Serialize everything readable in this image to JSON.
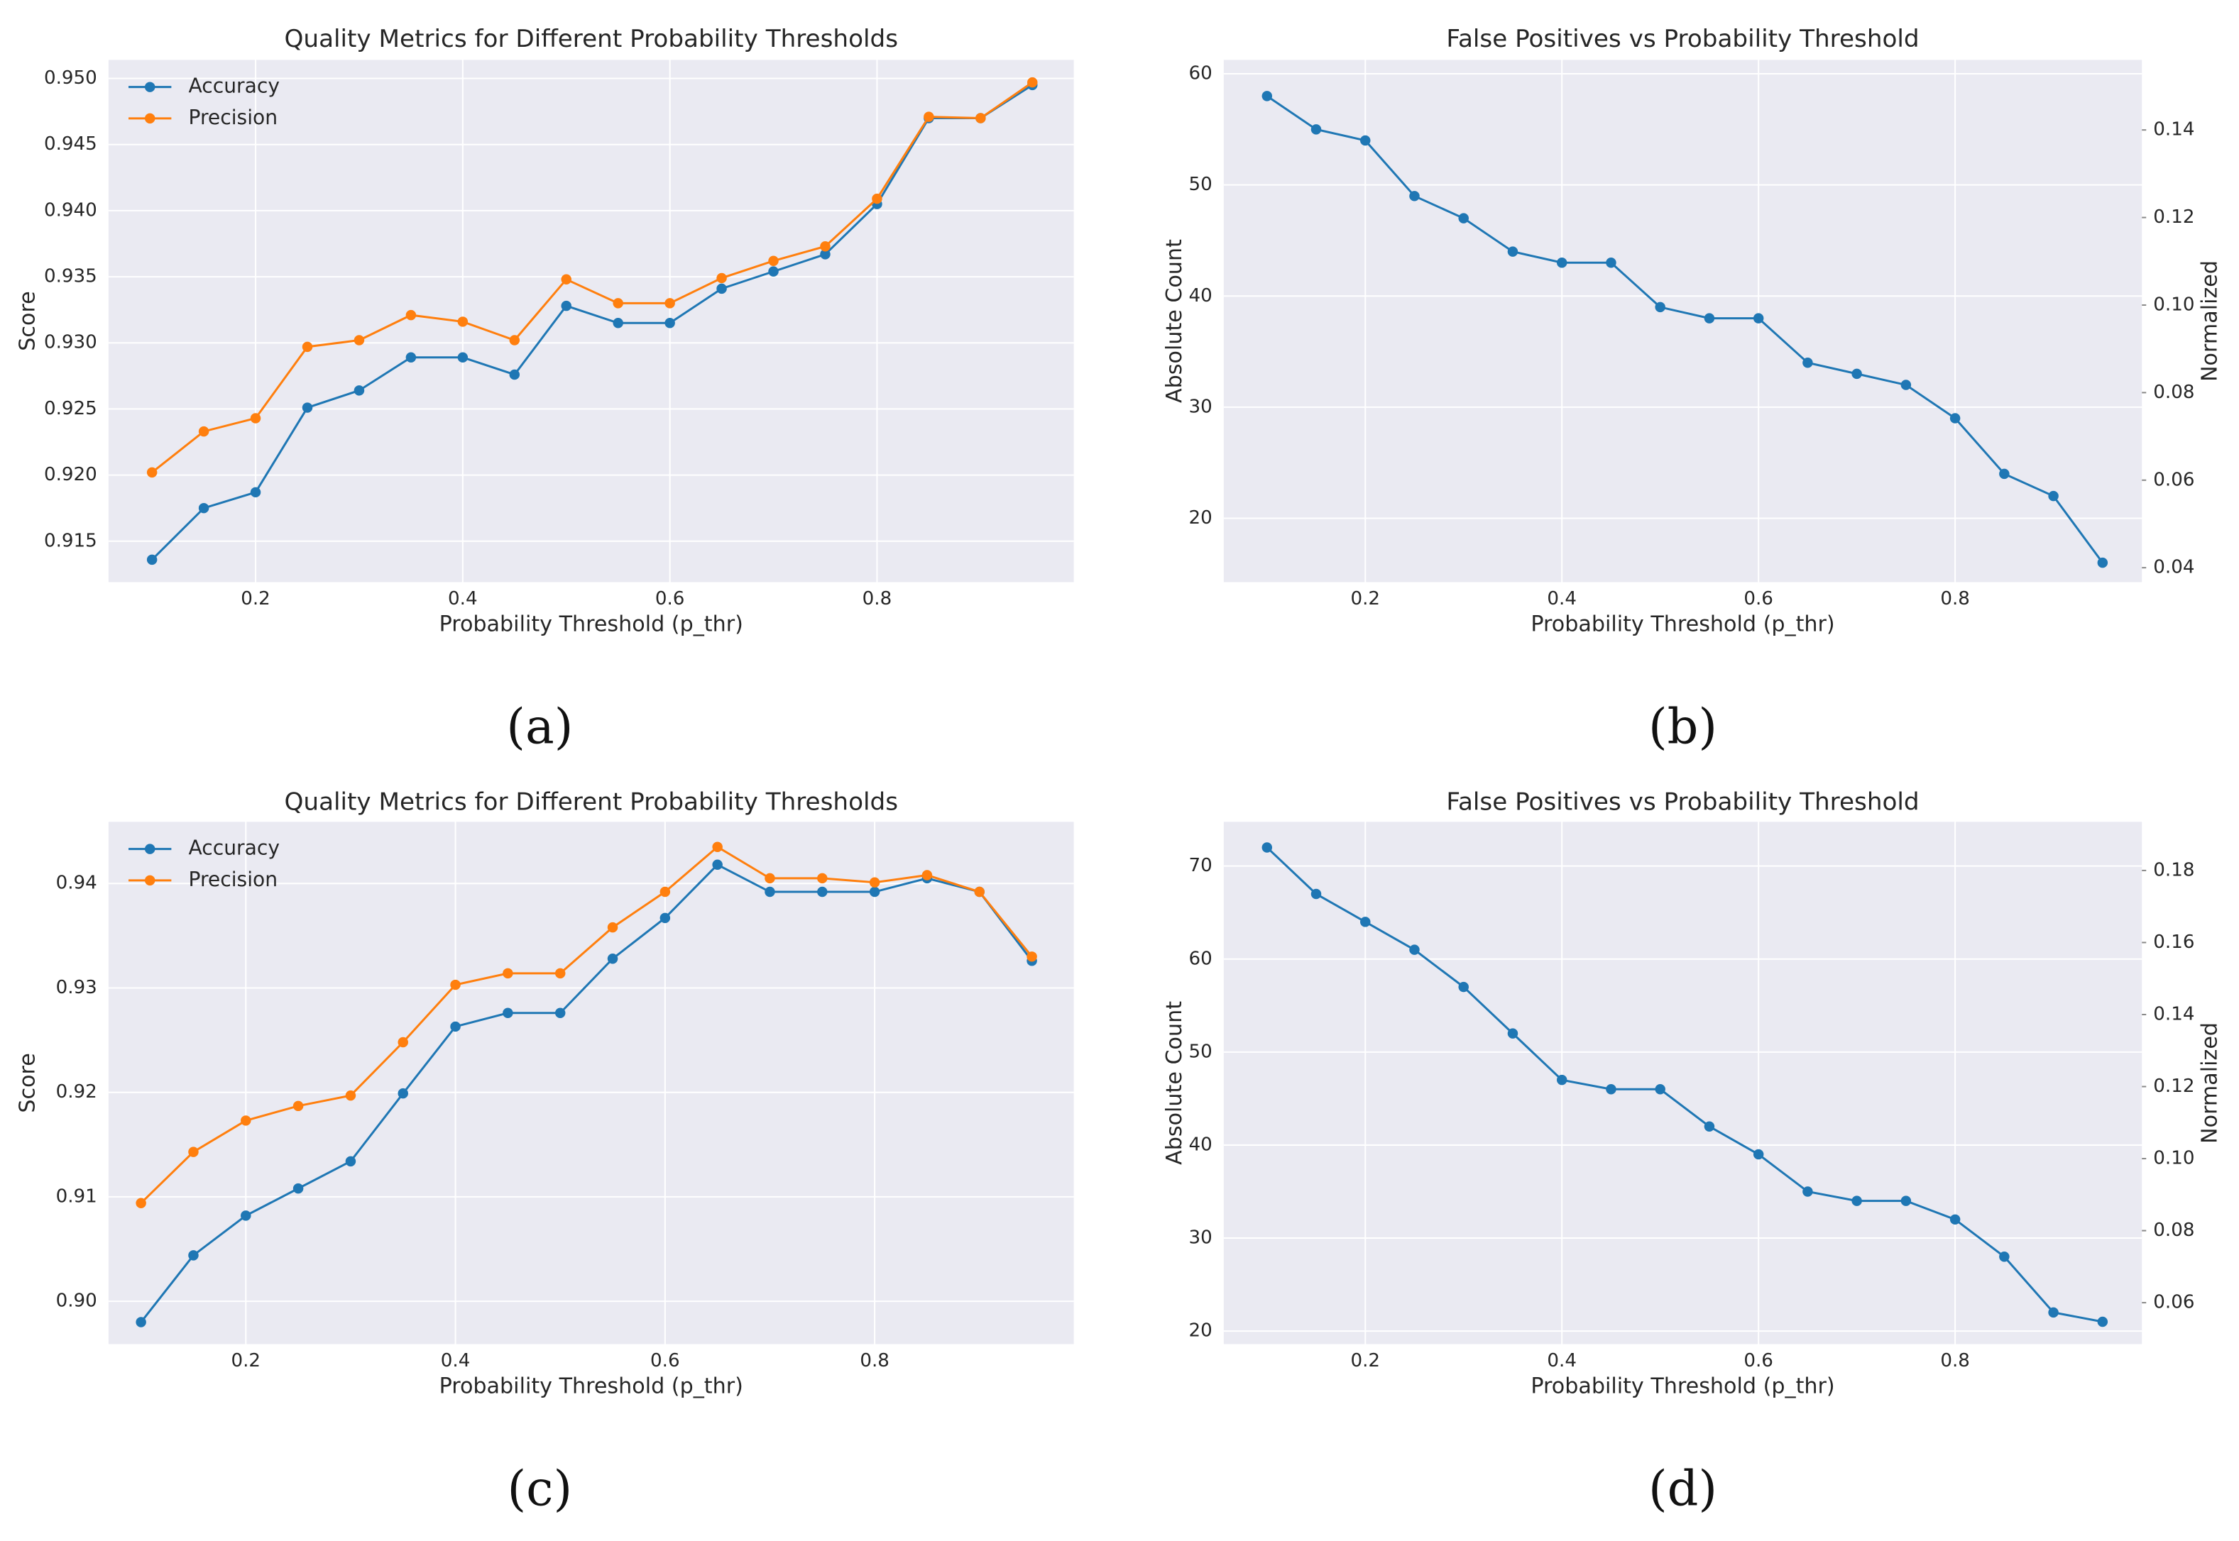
{
  "chart_data": [
    {
      "type": "line",
      "title": "Quality Metrics for Different Probability Thresholds",
      "panel_label": "(a)",
      "xlabel": "Probability Threshold (p_thr)",
      "ylabel": "Score",
      "x": [
        0.1,
        0.15,
        0.2,
        0.25,
        0.3,
        0.35,
        0.4,
        0.45,
        0.5,
        0.55,
        0.6,
        0.65,
        0.7,
        0.75,
        0.8,
        0.85,
        0.9,
        0.95
      ],
      "series": [
        {
          "name": "Accuracy",
          "color": "#1f77b4",
          "values": [
            0.9136,
            0.9175,
            0.9187,
            0.9251,
            0.9264,
            0.9289,
            0.9289,
            0.9276,
            0.9328,
            0.9315,
            0.9315,
            0.9341,
            0.9354,
            0.9367,
            0.9405,
            0.947,
            0.947,
            0.9495
          ]
        },
        {
          "name": "Precision",
          "color": "#ff7f0e",
          "values": [
            0.9202,
            0.9233,
            0.9243,
            0.9297,
            0.9302,
            0.9321,
            0.9316,
            0.9302,
            0.9348,
            0.933,
            0.933,
            0.9349,
            0.9362,
            0.9373,
            0.9409,
            0.9471,
            0.947,
            0.9497
          ]
        }
      ],
      "xlim": [
        0.058,
        0.99
      ],
      "xticks": [
        0.2,
        0.4,
        0.6,
        0.8
      ],
      "ylim": [
        0.9119,
        0.9514
      ],
      "yticks": [
        0.915,
        {
          "value": 0.92,
          "label": "0.920"
        },
        0.925,
        {
          "value": 0.93,
          "label": "0.930"
        },
        0.935,
        {
          "value": 0.94,
          "label": "0.940"
        },
        0.945,
        {
          "value": 0.95,
          "label": "0.950"
        }
      ],
      "grid": true,
      "legend": "upper left"
    },
    {
      "type": "line",
      "title": "False Positives vs Probability Threshold",
      "panel_label": "(b)",
      "xlabel": "Probability Threshold (p_thr)",
      "ylabel": "Absolute Count",
      "y2label": "Normalized",
      "x": [
        0.1,
        0.15,
        0.2,
        0.25,
        0.3,
        0.35,
        0.4,
        0.45,
        0.5,
        0.55,
        0.6,
        0.65,
        0.7,
        0.75,
        0.8,
        0.85,
        0.9,
        0.95
      ],
      "series": [
        {
          "color": "#1f77b4",
          "values": [
            58,
            55,
            54,
            49,
            47,
            44,
            43,
            43,
            39,
            38,
            38,
            34,
            33,
            32,
            29,
            24,
            22,
            16
          ]
        }
      ],
      "xlim": [
        0.056,
        0.99
      ],
      "xticks": [
        0.2,
        0.4,
        0.6,
        0.8
      ],
      "ylim": [
        14.25,
        61.25
      ],
      "yticks": [
        20,
        30,
        40,
        50,
        60
      ],
      "y2lim": [
        0.0367,
        0.156
      ],
      "y2ticks": [
        0.04,
        0.06,
        0.08,
        {
          "value": 0.1,
          "label": "0.10"
        },
        0.12,
        0.14
      ],
      "grid": true
    },
    {
      "type": "line",
      "title": "Quality Metrics for Different Probability Thresholds",
      "panel_label": "(c)",
      "xlabel": "Probability Threshold (p_thr)",
      "ylabel": "Score",
      "x": [
        0.1,
        0.15,
        0.2,
        0.25,
        0.3,
        0.35,
        0.4,
        0.45,
        0.5,
        0.55,
        0.6,
        0.65,
        0.7,
        0.75,
        0.8,
        0.85,
        0.9,
        0.95
      ],
      "series": [
        {
          "name": "Accuracy",
          "color": "#1f77b4",
          "values": [
            0.898,
            0.9044,
            0.9082,
            0.9108,
            0.9134,
            0.9199,
            0.9263,
            0.9276,
            0.9276,
            0.9328,
            0.9367,
            0.9418,
            0.9392,
            0.9392,
            0.9392,
            0.9405,
            0.9392,
            0.9326
          ]
        },
        {
          "name": "Precision",
          "color": "#ff7f0e",
          "values": [
            0.9094,
            0.9143,
            0.9173,
            0.9187,
            0.9197,
            0.9248,
            0.9303,
            0.9314,
            0.9314,
            0.9358,
            0.9392,
            0.9435,
            0.9405,
            0.9405,
            0.9401,
            0.9408,
            0.9392,
            0.933
          ]
        }
      ],
      "xlim": [
        0.069,
        0.99
      ],
      "xticks": [
        0.2,
        0.4,
        0.6,
        0.8
      ],
      "ylim": [
        0.8959,
        0.9459
      ],
      "yticks": [
        {
          "value": 0.9,
          "label": "0.90"
        },
        0.91,
        0.92,
        0.93,
        0.94
      ],
      "grid": true,
      "legend": "upper left"
    },
    {
      "type": "line",
      "title": "False Positives vs Probability Threshold",
      "panel_label": "(d)",
      "xlabel": "Probability Threshold (p_thr)",
      "ylabel": "Absolute Count",
      "y2label": "Normalized",
      "x": [
        0.1,
        0.15,
        0.2,
        0.25,
        0.3,
        0.35,
        0.4,
        0.45,
        0.5,
        0.55,
        0.6,
        0.65,
        0.7,
        0.75,
        0.8,
        0.85,
        0.9,
        0.95
      ],
      "series": [
        {
          "color": "#1f77b4",
          "values": [
            72,
            67,
            64,
            61,
            57,
            52,
            47,
            46,
            46,
            42,
            39,
            35,
            34,
            34,
            32,
            28,
            22,
            21
          ]
        }
      ],
      "xlim": [
        0.056,
        0.99
      ],
      "xticks": [
        0.2,
        0.4,
        0.6,
        0.8
      ],
      "ylim": [
        18.6,
        74.75
      ],
      "yticks": [
        20,
        30,
        40,
        50,
        60,
        70
      ],
      "y2lim": [
        0.0485,
        0.1935
      ],
      "y2ticks": [
        0.06,
        0.08,
        {
          "value": 0.1,
          "label": "0.10"
        },
        0.12,
        0.14,
        0.16,
        0.18
      ],
      "grid": true
    }
  ]
}
